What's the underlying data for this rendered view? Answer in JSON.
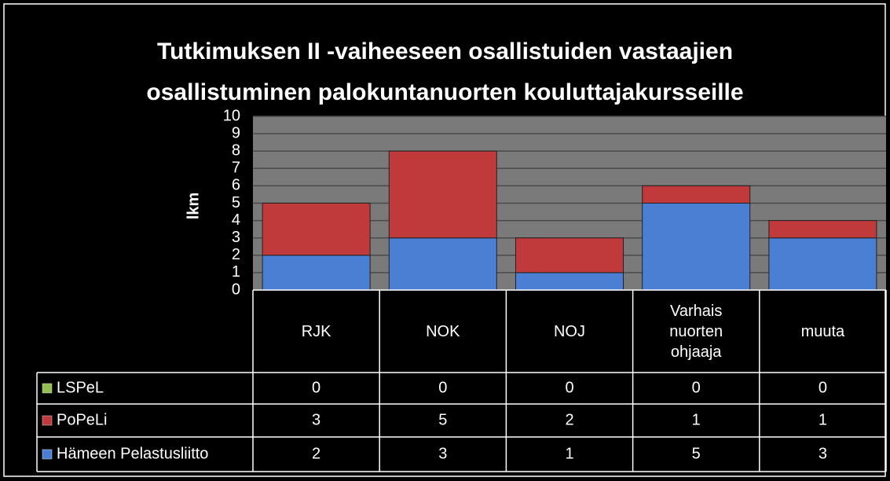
{
  "chart_data": {
    "type": "bar",
    "stacked": true,
    "title": "Tutkimuksen II -vaiheeseen osallistuiden vastaajien osallistuminen palokuntanuorten kouluttajakursseille",
    "y_label": "lkm",
    "categories": [
      "RJK",
      "NOK",
      "NOJ",
      "Varhaisnuortenohjaaja",
      "muuta"
    ],
    "series": [
      {
        "name": "LSPeL",
        "color": "#92c050",
        "values": [
          0,
          0,
          0,
          0,
          0
        ]
      },
      {
        "name": "PoPeLi",
        "color": "#c0393b",
        "values": [
          3,
          5,
          2,
          1,
          1
        ]
      },
      {
        "name": "Hämeen Pelastusliitto",
        "color": "#4a7fd4",
        "values": [
          2,
          3,
          1,
          5,
          3
        ]
      }
    ],
    "ylim": [
      0,
      10
    ],
    "yticks": [
      0,
      1,
      2,
      3,
      4,
      5,
      6,
      7,
      8,
      9,
      10
    ],
    "grid": true,
    "data_table": true
  }
}
